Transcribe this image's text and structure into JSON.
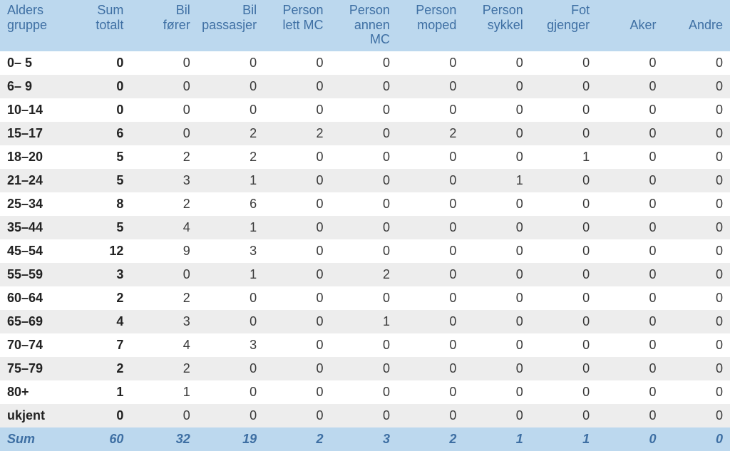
{
  "table": {
    "header_bg": "#bcd8ee",
    "header_fg": "#3e6fa3",
    "row_odd_bg": "#ffffff",
    "row_even_bg": "#ededed",
    "sum_bg": "#bcd8ee",
    "sum_fg": "#3e6fa3",
    "columns": [
      {
        "line1": "Alders",
        "line2": "gruppe"
      },
      {
        "line1": "Sum",
        "line2": "totalt"
      },
      {
        "line1": "Bil",
        "line2": "fører"
      },
      {
        "line1": "Bil",
        "line2": "passasjer"
      },
      {
        "line1": "Person",
        "line2": "lett MC"
      },
      {
        "line1": "Person",
        "line2": "annen MC"
      },
      {
        "line1": "Person",
        "line2": "moped"
      },
      {
        "line1": "Person",
        "line2": "sykkel"
      },
      {
        "line1": "Fot",
        "line2": "gjenger"
      },
      {
        "line1": "",
        "line2": "Aker"
      },
      {
        "line1": "",
        "line2": "Andre"
      }
    ],
    "rows": [
      {
        "label": "0– 5",
        "values": [
          0,
          0,
          0,
          0,
          0,
          0,
          0,
          0,
          0,
          0
        ]
      },
      {
        "label": "6– 9",
        "values": [
          0,
          0,
          0,
          0,
          0,
          0,
          0,
          0,
          0,
          0
        ]
      },
      {
        "label": "10–14",
        "values": [
          0,
          0,
          0,
          0,
          0,
          0,
          0,
          0,
          0,
          0
        ]
      },
      {
        "label": "15–17",
        "values": [
          6,
          0,
          2,
          2,
          0,
          2,
          0,
          0,
          0,
          0
        ]
      },
      {
        "label": "18–20",
        "values": [
          5,
          2,
          2,
          0,
          0,
          0,
          0,
          1,
          0,
          0
        ]
      },
      {
        "label": "21–24",
        "values": [
          5,
          3,
          1,
          0,
          0,
          0,
          1,
          0,
          0,
          0
        ]
      },
      {
        "label": "25–34",
        "values": [
          8,
          2,
          6,
          0,
          0,
          0,
          0,
          0,
          0,
          0
        ]
      },
      {
        "label": "35–44",
        "values": [
          5,
          4,
          1,
          0,
          0,
          0,
          0,
          0,
          0,
          0
        ]
      },
      {
        "label": "45–54",
        "values": [
          12,
          9,
          3,
          0,
          0,
          0,
          0,
          0,
          0,
          0
        ]
      },
      {
        "label": "55–59",
        "values": [
          3,
          0,
          1,
          0,
          2,
          0,
          0,
          0,
          0,
          0
        ]
      },
      {
        "label": "60–64",
        "values": [
          2,
          2,
          0,
          0,
          0,
          0,
          0,
          0,
          0,
          0
        ]
      },
      {
        "label": "65–69",
        "values": [
          4,
          3,
          0,
          0,
          1,
          0,
          0,
          0,
          0,
          0
        ]
      },
      {
        "label": "70–74",
        "values": [
          7,
          4,
          3,
          0,
          0,
          0,
          0,
          0,
          0,
          0
        ]
      },
      {
        "label": "75–79",
        "values": [
          2,
          2,
          0,
          0,
          0,
          0,
          0,
          0,
          0,
          0
        ]
      },
      {
        "label": "80+",
        "values": [
          1,
          1,
          0,
          0,
          0,
          0,
          0,
          0,
          0,
          0
        ]
      },
      {
        "label": "ukjent",
        "values": [
          0,
          0,
          0,
          0,
          0,
          0,
          0,
          0,
          0,
          0
        ]
      }
    ],
    "sum": {
      "label": "Sum",
      "values": [
        60,
        32,
        19,
        2,
        3,
        2,
        1,
        1,
        0,
        0
      ]
    }
  }
}
